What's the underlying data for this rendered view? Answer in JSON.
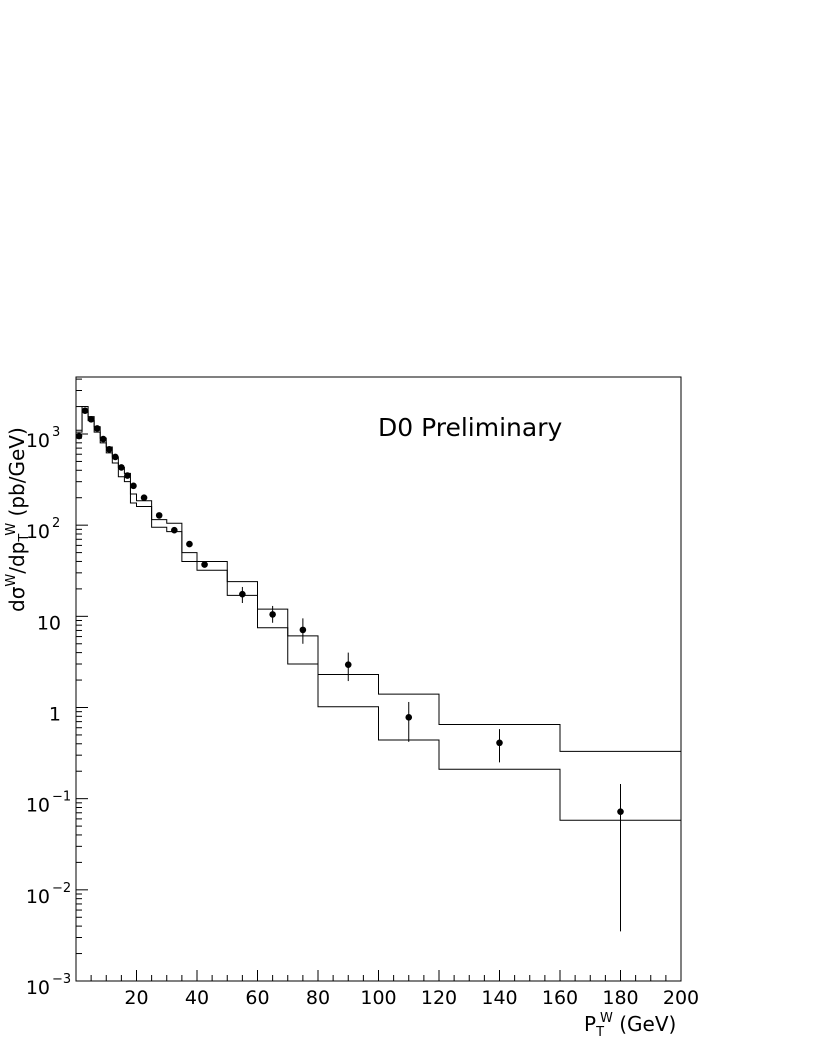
{
  "chart_data": {
    "type": "scatter",
    "annotation": "D0 Preliminary",
    "xlabel": {
      "main": "P",
      "sub": "T",
      "sup": "W",
      "rest": " (GeV)"
    },
    "ylabel": {
      "p1": "dσ",
      "s1": "W",
      "p2": "/dp",
      "sub2": "T",
      "s2": "W",
      "p3": " (pb/GeV)"
    },
    "xlim": [
      0,
      200
    ],
    "ylim": [
      0.001,
      4000
    ],
    "yscale": "log",
    "x_ticks": [
      20,
      40,
      60,
      80,
      100,
      120,
      140,
      160,
      180,
      200
    ],
    "x_tick_labels": [
      "20",
      "40",
      "60",
      "80",
      "100",
      "120",
      "140",
      "160",
      "180",
      "200"
    ],
    "y_ticks": [
      {
        "value": 1000,
        "base": "10",
        "exp": "3"
      },
      {
        "value": 100,
        "base": "10",
        "exp": "2"
      },
      {
        "value": 10,
        "base": "10",
        "exp": ""
      },
      {
        "value": 1,
        "base": "1",
        "exp": ""
      },
      {
        "value": 0.1,
        "base": "10",
        "exp": "−1"
      },
      {
        "value": 0.01,
        "base": "10",
        "exp": "−2"
      },
      {
        "value": 0.001,
        "base": "10",
        "exp": "−3"
      }
    ],
    "data_points": [
      {
        "x": 1,
        "y": 950,
        "err_lo": 0,
        "err_hi": 0
      },
      {
        "x": 3,
        "y": 1800,
        "err_lo": 0,
        "err_hi": 0
      },
      {
        "x": 5,
        "y": 1450,
        "err_lo": 0,
        "err_hi": 0
      },
      {
        "x": 7,
        "y": 1150,
        "err_lo": 0,
        "err_hi": 0
      },
      {
        "x": 9,
        "y": 880,
        "err_lo": 0,
        "err_hi": 0
      },
      {
        "x": 11,
        "y": 680,
        "err_lo": 0,
        "err_hi": 0
      },
      {
        "x": 13,
        "y": 560,
        "err_lo": 0,
        "err_hi": 0
      },
      {
        "x": 15,
        "y": 430,
        "err_lo": 0,
        "err_hi": 0
      },
      {
        "x": 17,
        "y": 350,
        "err_lo": 0,
        "err_hi": 0
      },
      {
        "x": 19,
        "y": 270,
        "err_lo": 0,
        "err_hi": 0
      },
      {
        "x": 22.5,
        "y": 200,
        "err_lo": 0,
        "err_hi": 0
      },
      {
        "x": 27.5,
        "y": 128,
        "err_lo": 0,
        "err_hi": 0
      },
      {
        "x": 32.5,
        "y": 88,
        "err_lo": 0,
        "err_hi": 0
      },
      {
        "x": 37.5,
        "y": 62,
        "err_lo": 0,
        "err_hi": 0
      },
      {
        "x": 42.5,
        "y": 37,
        "err_lo": 0,
        "err_hi": 0
      },
      {
        "x": 55,
        "y": 17.5,
        "err_lo": 14,
        "err_hi": 21
      },
      {
        "x": 65,
        "y": 10.5,
        "err_lo": 8.5,
        "err_hi": 13
      },
      {
        "x": 75,
        "y": 7.1,
        "err_lo": 5.0,
        "err_hi": 9.5
      },
      {
        "x": 90,
        "y": 2.95,
        "err_lo": 1.95,
        "err_hi": 4.0
      },
      {
        "x": 110,
        "y": 0.78,
        "err_lo": 0.42,
        "err_hi": 1.15
      },
      {
        "x": 140,
        "y": 0.41,
        "err_lo": 0.25,
        "err_hi": 0.58
      },
      {
        "x": 180,
        "y": 0.072,
        "err_lo": 0.0035,
        "err_hi": 0.145
      }
    ],
    "series": [
      {
        "edges": [
          0,
          2,
          4,
          6,
          8,
          10,
          12,
          14,
          16,
          18,
          20,
          25,
          30,
          35,
          40,
          50,
          60,
          70,
          80,
          100,
          120,
          160,
          200
        ],
        "values": [
          1100,
          2000,
          1550,
          1200,
          900,
          720,
          560,
          430,
          370,
          220,
          185,
          115,
          105,
          50,
          40,
          24,
          12,
          6.1,
          2.3,
          1.4,
          0.65,
          0.33
        ]
      },
      {
        "edges": [
          0,
          2,
          4,
          6,
          8,
          10,
          12,
          14,
          16,
          18,
          20,
          25,
          30,
          35,
          40,
          50,
          60,
          70,
          80,
          100,
          120,
          160,
          200
        ],
        "values": [
          1050,
          1800,
          1400,
          1050,
          800,
          620,
          480,
          340,
          300,
          175,
          160,
          95,
          85,
          40,
          32,
          17,
          7.5,
          3.0,
          1.02,
          0.44,
          0.21,
          0.058
        ]
      }
    ]
  }
}
